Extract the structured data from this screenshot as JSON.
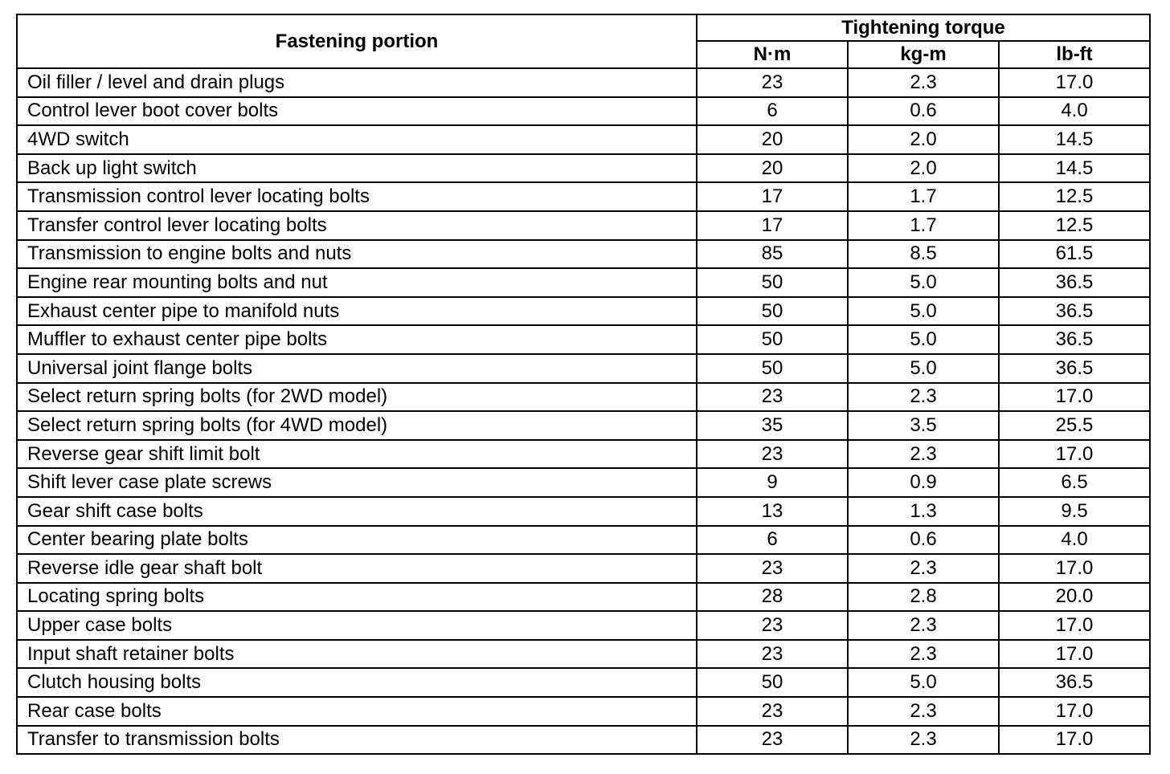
{
  "table": {
    "header": {
      "fastening_portion": "Fastening portion",
      "tightening_torque": "Tightening torque",
      "units": [
        "N·m",
        "kg-m",
        "lb-ft"
      ]
    },
    "rows": [
      [
        "Oil filler / level and drain plugs",
        "23",
        "2.3",
        "17.0"
      ],
      [
        "Control lever boot cover bolts",
        "6",
        "0.6",
        "4.0"
      ],
      [
        "4WD switch",
        "20",
        "2.0",
        "14.5"
      ],
      [
        "Back up light switch",
        "20",
        "2.0",
        "14.5"
      ],
      [
        "Transmission control lever locating bolts",
        "17",
        "1.7",
        "12.5"
      ],
      [
        "Transfer control lever locating bolts",
        "17",
        "1.7",
        "12.5"
      ],
      [
        "Transmission to engine bolts and nuts",
        "85",
        "8.5",
        "61.5"
      ],
      [
        "Engine rear mounting bolts and nut",
        "50",
        "5.0",
        "36.5"
      ],
      [
        "Exhaust center pipe to manifold nuts",
        "50",
        "5.0",
        "36.5"
      ],
      [
        "Muffler to exhaust center pipe bolts",
        "50",
        "5.0",
        "36.5"
      ],
      [
        "Universal joint flange bolts",
        "50",
        "5.0",
        "36.5"
      ],
      [
        "Select return spring bolts (for 2WD model)",
        "23",
        "2.3",
        "17.0"
      ],
      [
        "Select return spring bolts (for 4WD model)",
        "35",
        "3.5",
        "25.5"
      ],
      [
        "Reverse gear shift limit bolt",
        "23",
        "2.3",
        "17.0"
      ],
      [
        "Shift lever case plate screws",
        "9",
        "0.9",
        "6.5"
      ],
      [
        "Gear shift case bolts",
        "13",
        "1.3",
        "9.5"
      ],
      [
        "Center bearing plate bolts",
        "6",
        "0.6",
        "4.0"
      ],
      [
        "Reverse idle gear shaft bolt",
        "23",
        "2.3",
        "17.0"
      ],
      [
        "Locating spring bolts",
        "28",
        "2.8",
        "20.0"
      ],
      [
        "Upper case bolts",
        "23",
        "2.3",
        "17.0"
      ],
      [
        "Input shaft retainer bolts",
        "23",
        "2.3",
        "17.0"
      ],
      [
        "Clutch housing bolts",
        "50",
        "5.0",
        "36.5"
      ],
      [
        "Rear case bolts",
        "23",
        "2.3",
        "17.0"
      ],
      [
        "Transfer to transmission bolts",
        "23",
        "2.3",
        "17.0"
      ]
    ]
  }
}
